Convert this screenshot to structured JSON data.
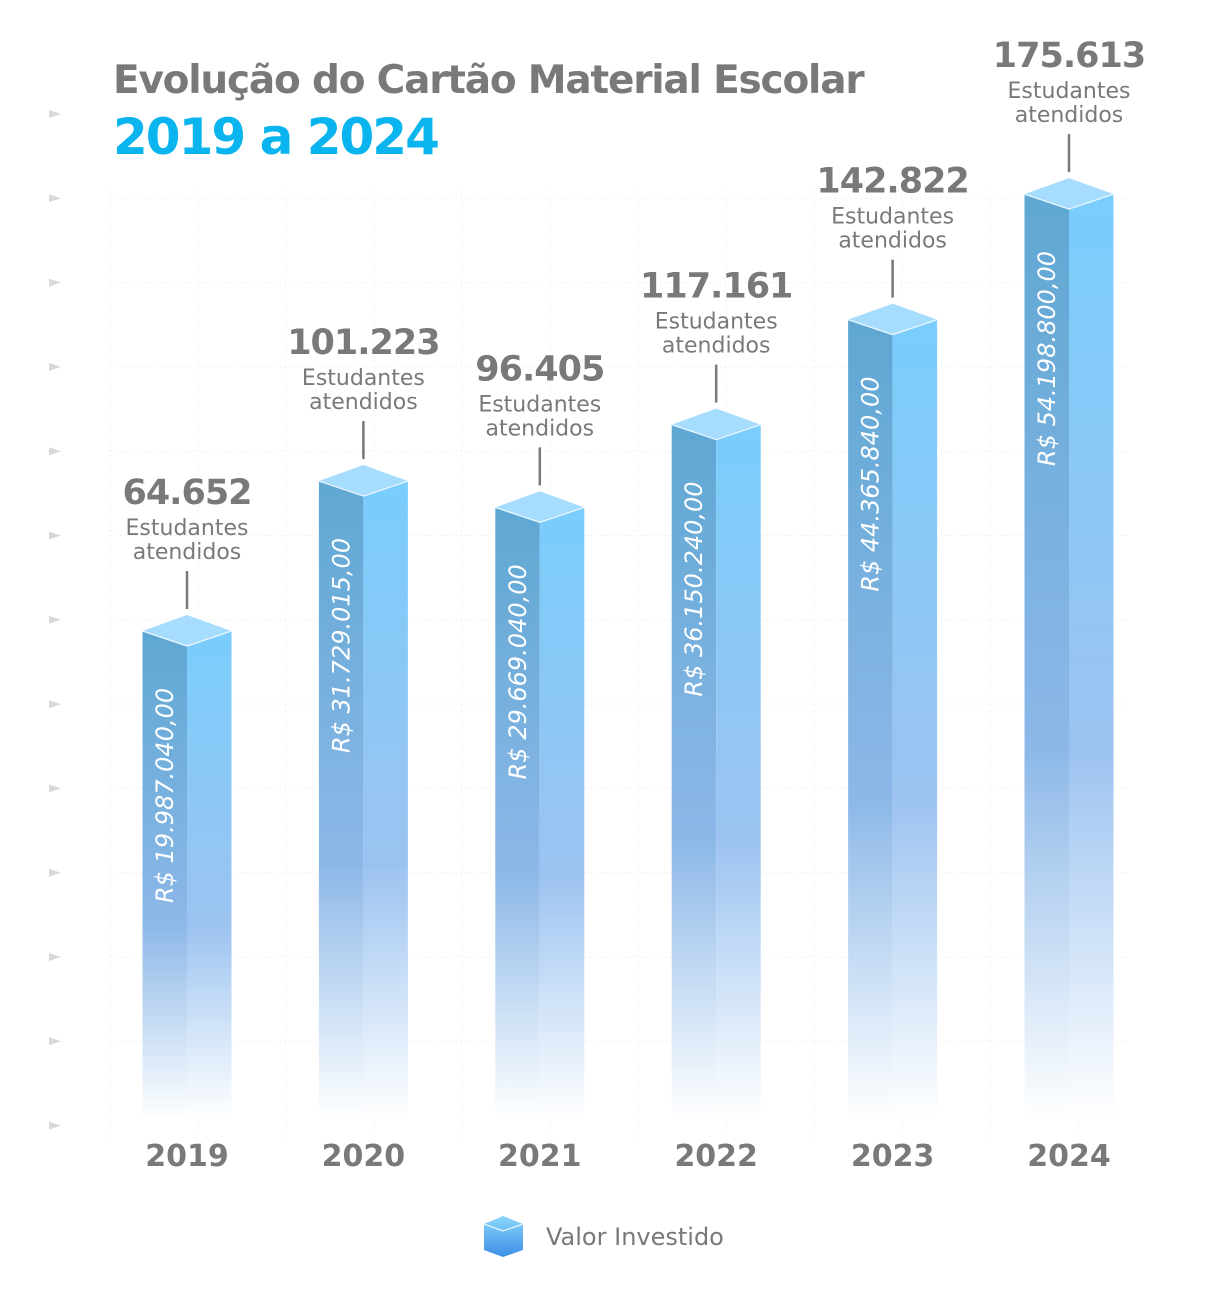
{
  "title": "Evolução do Cartão Material Escolar",
  "subtitle": "2019 a 2024",
  "colors": {
    "title": "#7b7878",
    "subtitle": "#0ab4ee",
    "bar_left": "#5fa9d6",
    "bar_right": "#79ccfb",
    "bar_top": "#a6dcfd"
  },
  "chart_data": {
    "type": "bar",
    "title": "Evolução do Cartão Material Escolar 2019 a 2024",
    "categories": [
      "2019",
      "2020",
      "2021",
      "2022",
      "2023",
      "2024"
    ],
    "series": [
      {
        "name": "Valor Investido",
        "values": [
          19987040,
          31729015,
          29669040,
          36150240,
          44365840,
          54198800
        ],
        "labels": [
          "R$ 19.987.040,00",
          "R$ 31.729.015,00",
          "R$ 29.669.040,00",
          "R$ 36.150.240,00",
          "R$ 44.365.840,00",
          "R$ 54.198.800,00"
        ]
      },
      {
        "name": "Estudantes atendidos",
        "values": [
          64652,
          101223,
          96405,
          117161,
          142822,
          175613
        ],
        "labels": [
          "64.652",
          "101.223",
          "96.405",
          "117.161",
          "142.822",
          "175.613"
        ]
      }
    ],
    "students_caption": [
      "Estudantes",
      "atendidos"
    ],
    "legend": {
      "label": "Valor Investido",
      "position": "bottom-center"
    },
    "ylim": [
      -18300000,
      60000000
    ],
    "grid": true,
    "xlabel": "",
    "ylabel": ""
  }
}
